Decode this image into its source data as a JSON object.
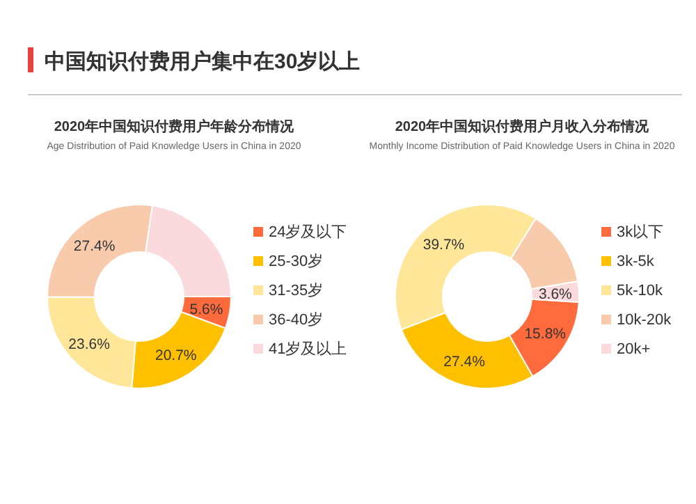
{
  "chart_data": [
    {
      "type": "other",
      "title": "中国知识付费用户集中在30岁以上"
    },
    {
      "type": "donut",
      "title": "2020年中国知识付费用户年龄分布情况",
      "subtitle": "Age Distribution of Paid Knowledge Users in China in 2020",
      "categories": [
        "24岁及以下",
        "25-30岁",
        "31-35岁",
        "36-40岁",
        "41岁及以上"
      ],
      "values": [
        5.6,
        20.7,
        23.6,
        27.4,
        22.7
      ],
      "colors": [
        "#ff6b3d",
        "#ffc000",
        "#ffe699",
        "#f8cbad",
        "#fadadd"
      ],
      "value_labels": [
        "5.6%",
        "20.7%",
        "23.6%",
        "27.4%",
        null
      ],
      "legend": "right"
    },
    {
      "type": "donut",
      "title": "2020年中国知识付费用户月收入分布情况",
      "subtitle": "Monthly Income Distribution of Paid Knowledge Users  in China in 2020",
      "categories": [
        "3k以下",
        "3k-5k",
        "5k-10k",
        "10k-20k",
        "20k+"
      ],
      "values": [
        15.8,
        27.4,
        39.7,
        13.5,
        3.6
      ],
      "colors": [
        "#ff6b3d",
        "#ffc000",
        "#ffe699",
        "#f8cbad",
        "#fadadd"
      ],
      "value_labels": [
        "15.8%",
        "27.4%",
        "39.7%",
        null,
        "3.6%"
      ],
      "legend": "right"
    }
  ]
}
